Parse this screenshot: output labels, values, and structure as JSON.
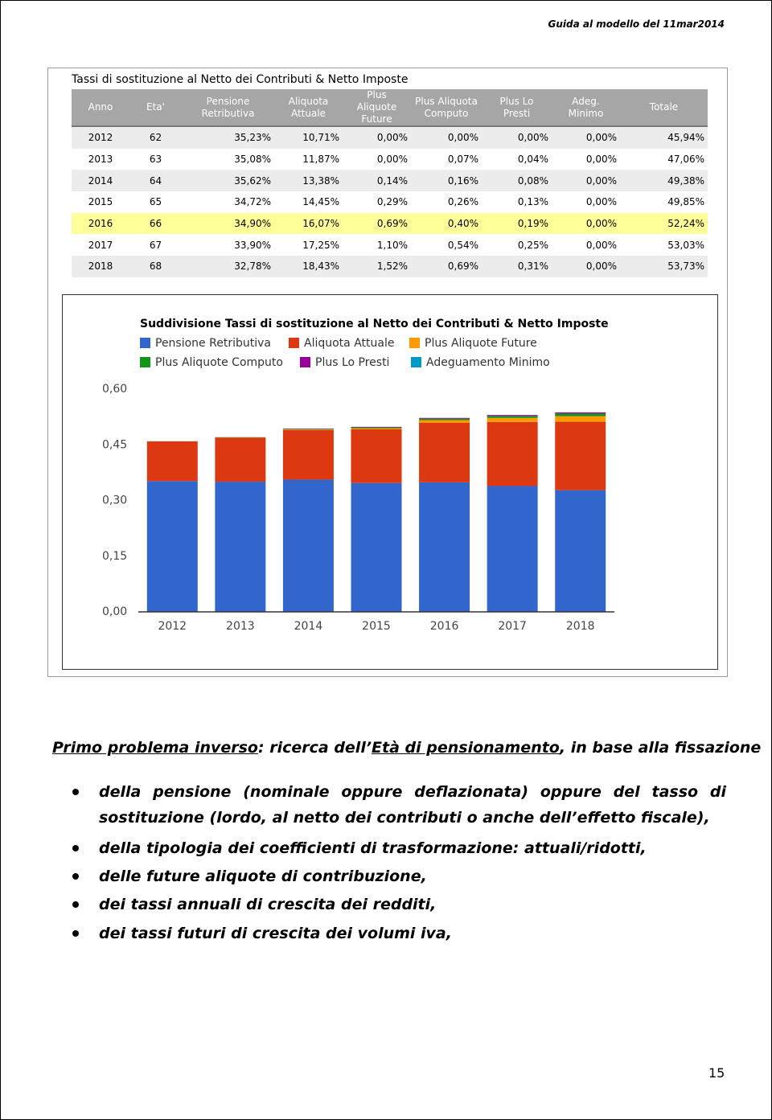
{
  "header": {
    "title": "Guida al modello del 11mar2014"
  },
  "table": {
    "title": "Tassi di sostituzione al Netto dei Contributi & Netto Imposte",
    "columns": [
      "Anno",
      "Eta'",
      "Pensione\nRetributiva",
      "Aliquota\nAttuale",
      "Plus Aliquote\nFuture",
      "Plus Aliquota\nComputo",
      "Plus Lo Presti",
      "Adeg. Minimo",
      "Totale"
    ],
    "rows": [
      [
        "2012",
        "62",
        "35,23%",
        "10,71%",
        "0,00%",
        "0,00%",
        "0,00%",
        "0,00%",
        "45,94%"
      ],
      [
        "2013",
        "63",
        "35,08%",
        "11,87%",
        "0,00%",
        "0,07%",
        "0,04%",
        "0,00%",
        "47,06%"
      ],
      [
        "2014",
        "64",
        "35,62%",
        "13,38%",
        "0,14%",
        "0,16%",
        "0,08%",
        "0,00%",
        "49,38%"
      ],
      [
        "2015",
        "65",
        "34,72%",
        "14,45%",
        "0,29%",
        "0,26%",
        "0,13%",
        "0,00%",
        "49,85%"
      ],
      [
        "2016",
        "66",
        "34,90%",
        "16,07%",
        "0,69%",
        "0,40%",
        "0,19%",
        "0,00%",
        "52,24%"
      ],
      [
        "2017",
        "67",
        "33,90%",
        "17,25%",
        "1,10%",
        "0,54%",
        "0,25%",
        "0,00%",
        "53,03%"
      ],
      [
        "2018",
        "68",
        "32,78%",
        "18,43%",
        "1,52%",
        "0,69%",
        "0,31%",
        "0,00%",
        "53,73%"
      ]
    ]
  },
  "chart_data": {
    "type": "stacked_bar",
    "title": "Suddivisione Tassi di sostituzione al Netto dei Contributi & Netto Imposte",
    "categories": [
      "2012",
      "2013",
      "2014",
      "2015",
      "2016",
      "2017",
      "2018"
    ],
    "series": [
      {
        "name": "Pensione Retributiva",
        "color": "#3366cc",
        "values": [
          0.3523,
          0.3508,
          0.3562,
          0.3472,
          0.349,
          0.339,
          0.3278
        ]
      },
      {
        "name": "Aliquota Attuale",
        "color": "#dc3912",
        "values": [
          0.1071,
          0.1187,
          0.1338,
          0.1445,
          0.1607,
          0.1725,
          0.1843
        ]
      },
      {
        "name": "Plus Aliquote Future",
        "color": "#ff9900",
        "values": [
          0,
          0,
          0.0014,
          0.0029,
          0.0069,
          0.011,
          0.0152
        ]
      },
      {
        "name": "Plus Aliquote Computo",
        "color": "#109618",
        "values": [
          0,
          0.0007,
          0.0016,
          0.0026,
          0.004,
          0.0054,
          0.0069
        ]
      },
      {
        "name": "Plus Lo Presti",
        "color": "#990099",
        "values": [
          0,
          0.0004,
          0.0008,
          0.0013,
          0.0019,
          0.0025,
          0.0031
        ]
      },
      {
        "name": "Adeguamento Minimo",
        "color": "#0099c6",
        "values": [
          0,
          0,
          0,
          0,
          0,
          0,
          0
        ]
      }
    ],
    "ylim": [
      0,
      0.6
    ],
    "yticks": [
      {
        "value": 0,
        "label": "0,00"
      },
      {
        "value": 0.15,
        "label": "0,15"
      },
      {
        "value": 0.3,
        "label": "0,30"
      },
      {
        "value": 0.45,
        "label": "0,45"
      },
      {
        "value": 0.6,
        "label": "0,60"
      }
    ]
  },
  "heading": [
    "Primo problema inverso",
    ": ricerca dell’",
    "Età di pensionamento",
    ", in base alla fissazione"
  ],
  "bullets": [
    "della pensione (nominale oppure deflazionata) oppure del tasso di sostituzione (lordo, al netto dei contributi o anche dell’effetto fiscale),",
    "della tipologia dei coefficienti di trasformazione: attuali/ridotti,",
    "delle future aliquote di contribuzione,",
    "dei tassi annuali di crescita dei redditi,",
    "dei tassi futuri di crescita dei volumi iva,"
  ],
  "page_number": "15"
}
